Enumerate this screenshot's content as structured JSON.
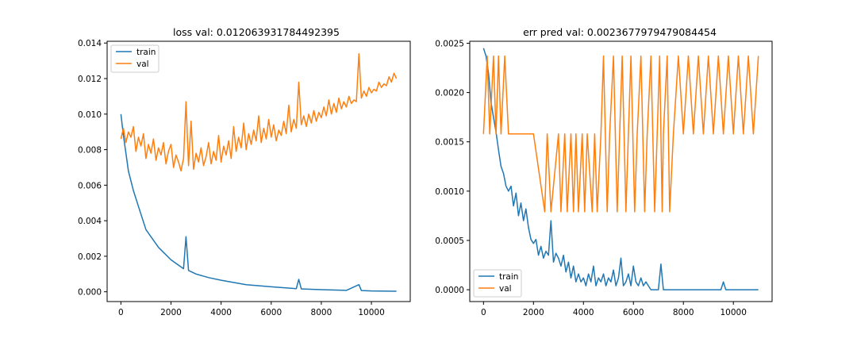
{
  "chart_data": [
    {
      "type": "line",
      "title": "loss val: 0.012063931784492395",
      "xlabel": "",
      "ylabel": "",
      "xlim": [
        -550,
        11550
      ],
      "ylim": [
        -0.00055,
        0.0141
      ],
      "xticks": [
        0,
        2000,
        4000,
        6000,
        8000,
        10000
      ],
      "xtick_labels": [
        "0",
        "2000",
        "4000",
        "6000",
        "8000",
        "10000"
      ],
      "yticks": [
        0,
        0.002,
        0.004,
        0.006,
        0.008,
        0.01,
        0.012,
        0.014
      ],
      "ytick_labels": [
        "0.000",
        "0.002",
        "0.004",
        "0.006",
        "0.008",
        "0.010",
        "0.012",
        "0.014"
      ],
      "grid": false,
      "legend": "upper left",
      "series": [
        {
          "name": "train",
          "color": "#1f77b4",
          "x": [
            0,
            100,
            200,
            300,
            500,
            700,
            1000,
            1500,
            2000,
            2500,
            2600,
            2700,
            3000,
            3500,
            4000,
            5000,
            6000,
            7000,
            7100,
            7200,
            8000,
            9000,
            9500,
            9600,
            10000,
            11000
          ],
          "y": [
            0.01,
            0.0088,
            0.0078,
            0.0068,
            0.0057,
            0.0048,
            0.0035,
            0.0025,
            0.0018,
            0.0013,
            0.0031,
            0.0012,
            0.001,
            0.0008,
            0.00065,
            0.0004,
            0.00028,
            0.00018,
            0.0007,
            0.00016,
            0.00012,
            8e-05,
            0.0004,
            7e-05,
            5e-05,
            3e-05
          ]
        },
        {
          "name": "val",
          "color": "#ff7f0e",
          "x": [
            0,
            100,
            200,
            300,
            400,
            500,
            600,
            700,
            800,
            900,
            1000,
            1100,
            1200,
            1300,
            1400,
            1500,
            1600,
            1700,
            1800,
            1900,
            2000,
            2100,
            2200,
            2300,
            2400,
            2500,
            2600,
            2700,
            2800,
            2900,
            3000,
            3100,
            3200,
            3300,
            3400,
            3500,
            3600,
            3700,
            3800,
            3900,
            4000,
            4100,
            4200,
            4300,
            4400,
            4500,
            4600,
            4700,
            4800,
            4900,
            5000,
            5100,
            5200,
            5300,
            5400,
            5500,
            5600,
            5700,
            5800,
            5900,
            6000,
            6100,
            6200,
            6300,
            6400,
            6500,
            6600,
            6700,
            6800,
            6900,
            7000,
            7100,
            7200,
            7300,
            7400,
            7500,
            7600,
            7700,
            7800,
            7900,
            8000,
            8100,
            8200,
            8300,
            8400,
            8500,
            8600,
            8700,
            8800,
            8900,
            9000,
            9100,
            9200,
            9300,
            9400,
            9500,
            9600,
            9700,
            9800,
            9900,
            10000,
            10100,
            10200,
            10300,
            10400,
            10500,
            10600,
            10700,
            10800,
            10900,
            11000
          ],
          "y": [
            0.0086,
            0.0092,
            0.0084,
            0.009,
            0.0087,
            0.0093,
            0.0079,
            0.0087,
            0.0082,
            0.0089,
            0.0075,
            0.0083,
            0.0078,
            0.0086,
            0.0074,
            0.0081,
            0.0077,
            0.0084,
            0.0072,
            0.0079,
            0.0083,
            0.007,
            0.0077,
            0.0073,
            0.0068,
            0.0075,
            0.0107,
            0.0071,
            0.0096,
            0.0069,
            0.0078,
            0.0073,
            0.0081,
            0.0071,
            0.0076,
            0.0084,
            0.0072,
            0.0079,
            0.0074,
            0.0088,
            0.0073,
            0.0082,
            0.0077,
            0.0085,
            0.0075,
            0.0093,
            0.0079,
            0.0087,
            0.0081,
            0.0095,
            0.008,
            0.0089,
            0.0083,
            0.0091,
            0.0085,
            0.0099,
            0.0084,
            0.0092,
            0.0086,
            0.0097,
            0.0087,
            0.0094,
            0.0085,
            0.0091,
            0.0088,
            0.0096,
            0.0089,
            0.0105,
            0.009,
            0.0097,
            0.0092,
            0.0118,
            0.0094,
            0.0099,
            0.0093,
            0.01,
            0.0095,
            0.0102,
            0.0096,
            0.0101,
            0.0098,
            0.0104,
            0.0099,
            0.0108,
            0.01,
            0.0106,
            0.0101,
            0.0109,
            0.0103,
            0.0107,
            0.0104,
            0.011,
            0.0106,
            0.0108,
            0.0107,
            0.0134,
            0.0109,
            0.0113,
            0.011,
            0.0115,
            0.0112,
            0.0114,
            0.0113,
            0.0118,
            0.0115,
            0.0117,
            0.0116,
            0.0121,
            0.0118,
            0.0123,
            0.012
          ]
        }
      ]
    },
    {
      "type": "line",
      "title": "err pred val: 0.0023677979479084454",
      "xlabel": "",
      "ylabel": "",
      "xlim": [
        -550,
        11550
      ],
      "ylim": [
        -0.00012,
        0.00252
      ],
      "xticks": [
        0,
        2000,
        4000,
        6000,
        8000,
        10000
      ],
      "xtick_labels": [
        "0",
        "2000",
        "4000",
        "6000",
        "8000",
        "10000"
      ],
      "yticks": [
        0,
        0.0005,
        0.001,
        0.0015,
        0.002,
        0.0025
      ],
      "ytick_labels": [
        "0.0000",
        "0.0005",
        "0.0010",
        "0.0015",
        "0.0020",
        "0.0025"
      ],
      "grid": false,
      "legend": "lower left",
      "series": [
        {
          "name": "train",
          "color": "#1f77b4",
          "x": [
            0,
            100,
            200,
            300,
            400,
            500,
            600,
            700,
            800,
            900,
            1000,
            1100,
            1200,
            1300,
            1400,
            1500,
            1600,
            1700,
            1800,
            1900,
            2000,
            2100,
            2200,
            2300,
            2400,
            2500,
            2600,
            2700,
            2800,
            2900,
            3000,
            3100,
            3200,
            3300,
            3400,
            3500,
            3600,
            3700,
            3800,
            3900,
            4000,
            4100,
            4200,
            4300,
            4400,
            4500,
            4600,
            4700,
            4800,
            4900,
            5000,
            5100,
            5200,
            5300,
            5400,
            5500,
            5600,
            5700,
            5800,
            5900,
            6000,
            6100,
            6200,
            6300,
            6400,
            6500,
            6600,
            6700,
            7000,
            7100,
            7200,
            7300,
            8000,
            9000,
            9500,
            9600,
            9700,
            10000,
            11000
          ],
          "y": [
            0.00245,
            0.00237,
            0.0022,
            0.0019,
            0.00175,
            0.0016,
            0.00142,
            0.00125,
            0.00118,
            0.00105,
            0.001,
            0.00105,
            0.00085,
            0.00098,
            0.00075,
            0.00088,
            0.0007,
            0.00082,
            0.00063,
            0.00051,
            0.00047,
            0.00051,
            0.00035,
            0.00044,
            0.00032,
            0.00039,
            0.00035,
            0.0007,
            0.00028,
            0.00037,
            0.00032,
            0.00024,
            0.00035,
            0.00018,
            0.00028,
            0.00012,
            0.00024,
            8e-05,
            0.00016,
            8e-05,
            0.00012,
            4e-05,
            0.00016,
            8e-05,
            0.00024,
            4e-05,
            0.00012,
            8e-05,
            0.00016,
            4e-05,
            0.00012,
            8e-05,
            0.0002,
            4e-05,
            0.00012,
            0.00032,
            4e-05,
            8e-05,
            0.00016,
            4e-05,
            0.00024,
            8e-05,
            4e-05,
            0.00012,
            4e-05,
            8e-05,
            4e-05,
            0.0,
            0.0,
            0.00026,
            0.0,
            0.0,
            0.0,
            0.0,
            0.0,
            8e-05,
            0.0,
            0.0,
            0.0
          ]
        },
        {
          "name": "val",
          "color": "#ff7f0e",
          "x": [
            0,
            150,
            250,
            400,
            500,
            600,
            700,
            850,
            1000,
            1100,
            2000,
            2450,
            2550,
            2700,
            3000,
            3100,
            3250,
            3350,
            3500,
            3600,
            3700,
            3800,
            3950,
            4050,
            4150,
            4350,
            4450,
            4550,
            4700,
            4800,
            4950,
            5050,
            5200,
            5350,
            5450,
            5550,
            5700,
            5800,
            5900,
            6050,
            6150,
            6300,
            6450,
            6550,
            6700,
            6850,
            6950,
            7050,
            7150,
            7200,
            7350,
            7450,
            7600,
            7800,
            8000,
            8200,
            8400,
            8600,
            8800,
            9000,
            9200,
            9400,
            9600,
            9800,
            10000,
            10200,
            10400,
            10600,
            10800,
            11000
          ],
          "y": [
            0.00158,
            0.00237,
            0.00158,
            0.00237,
            0.00158,
            0.00237,
            0.00158,
            0.00237,
            0.00158,
            0.00158,
            0.00158,
            0.00079,
            0.00158,
            0.00079,
            0.00158,
            0.00079,
            0.00158,
            0.00079,
            0.00158,
            0.00079,
            0.00158,
            0.00079,
            0.00158,
            0.00079,
            0.00158,
            0.00079,
            0.00158,
            0.00079,
            0.00158,
            0.00237,
            0.00079,
            0.00158,
            0.00237,
            0.00079,
            0.00158,
            0.00237,
            0.00079,
            0.00158,
            0.00237,
            0.00079,
            0.00158,
            0.00237,
            0.00079,
            0.00158,
            0.00237,
            0.00079,
            0.00158,
            0.00237,
            0.00079,
            0.00158,
            0.00237,
            0.00079,
            0.00158,
            0.00237,
            0.00158,
            0.00237,
            0.00158,
            0.00237,
            0.00158,
            0.00237,
            0.00158,
            0.00237,
            0.00158,
            0.00237,
            0.00158,
            0.00237,
            0.00158,
            0.00237,
            0.00158,
            0.00237
          ]
        }
      ]
    }
  ]
}
